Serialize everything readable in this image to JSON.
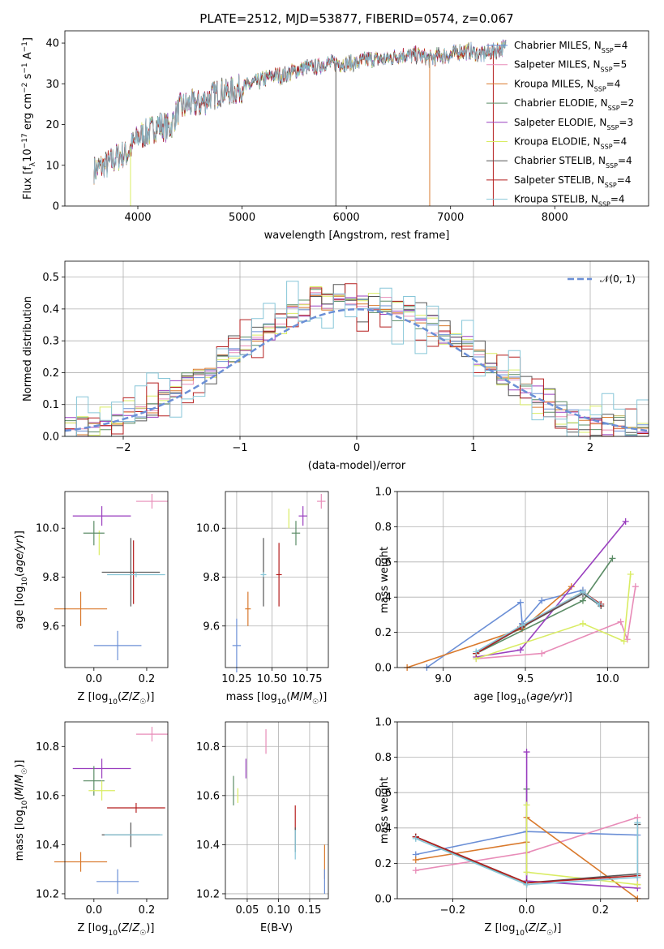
{
  "colors": {
    "Chabrier MILES": "#6b8fd6",
    "Salpeter MILES": "#e88cb8",
    "Kroupa MILES": "#d9792c",
    "Chabrier ELODIE": "#5b8c66",
    "Salpeter ELODIE": "#9a3fbf",
    "Kroupa ELODIE": "#d9ec63",
    "Chabrier STELIB": "#555555",
    "Salpeter STELIB": "#b51f1f",
    "Kroupa STELIB": "#87c6d8",
    "normal": "#6b8fd6"
  },
  "chart_data": [
    {
      "id": "spectrum",
      "type": "line",
      "title": "PLATE=2512, MJD=53877, FIBERID=0574, z=0.067",
      "xlabel": "wavelength [Angstrom, rest frame]",
      "ylabel": "Flux [f_λ10^-17 erg cm^-2 s^-1 A^-1]",
      "xlim": [
        3300,
        8900
      ],
      "ylim": [
        0,
        43
      ],
      "xticks": [
        4000,
        5000,
        6000,
        7000,
        8000
      ],
      "yticks": [
        0,
        10,
        20,
        30,
        40
      ],
      "grid": false,
      "legend_position": "top-right",
      "spectrum_x_range": [
        3580,
        7530
      ],
      "spectrum_anchor": {
        "x": [
          3580,
          3700,
          3800,
          3900,
          4000,
          4100,
          4200,
          4300,
          4400,
          4500,
          4600,
          4700,
          4800,
          4900,
          5000,
          5100,
          5200,
          5300,
          5400,
          5500,
          5600,
          5700,
          5800,
          5900,
          6000,
          6100,
          6200,
          6300,
          6400,
          6500,
          6600,
          6700,
          6800,
          6900,
          7000,
          7100,
          7200,
          7300,
          7400,
          7530
        ],
        "y": [
          9,
          10,
          12,
          13,
          17,
          18,
          20,
          19,
          24,
          25,
          25,
          27,
          28,
          28,
          29,
          30,
          31,
          32,
          32,
          33,
          34,
          34,
          35,
          35,
          35,
          35,
          36,
          36,
          36,
          37,
          37,
          37,
          36,
          37,
          37,
          38,
          38,
          37,
          38,
          39
        ]
      },
      "series": [
        {
          "name": "Chabrier MILES",
          "label": "Chabrier MILES, N",
          "sub": "SSP",
          "n": "=4"
        },
        {
          "name": "Salpeter MILES",
          "label": "Salpeter MILES, N",
          "sub": "SSP",
          "n": "=5"
        },
        {
          "name": "Kroupa MILES",
          "label": "Kroupa MILES, N",
          "sub": "SSP",
          "n": "=4"
        },
        {
          "name": "Chabrier ELODIE",
          "label": "Chabrier ELODIE, N",
          "sub": "SSP",
          "n": "=2"
        },
        {
          "name": "Salpeter ELODIE",
          "label": "Salpeter ELODIE, N",
          "sub": "SSP",
          "n": "=3"
        },
        {
          "name": "Kroupa ELODIE",
          "label": "Kroupa ELODIE, N",
          "sub": "SSP",
          "n": "=4"
        },
        {
          "name": "Chabrier STELIB",
          "label": "Chabrier STELIB, N",
          "sub": "SSP",
          "n": "=4"
        },
        {
          "name": "Salpeter STELIB",
          "label": "Salpeter STELIB, N",
          "sub": "SSP",
          "n": "=4"
        },
        {
          "name": "Kroupa STELIB",
          "label": "Kroupa STELIB, N",
          "sub": "SSP",
          "n": "=4"
        }
      ]
    },
    {
      "id": "residuals",
      "type": "line",
      "xlabel": "(data-model)/error",
      "ylabel": "Normed distribution",
      "xlim": [
        -2.5,
        2.5
      ],
      "ylim": [
        0,
        0.55
      ],
      "xticks": [
        -2,
        -1,
        0,
        1,
        2
      ],
      "xtick_labels": [
        "−2",
        "−1",
        "0",
        "1",
        "2"
      ],
      "yticks": [
        0.0,
        0.1,
        0.2,
        0.3,
        0.4,
        0.5
      ],
      "grid": true,
      "legend_position": "top-right",
      "legend": "𝒩(0, 1)",
      "bin_width": 0.1,
      "histogram_centers": [
        -2.45,
        -2.35,
        -2.25,
        -2.15,
        -2.05,
        -1.95,
        -1.85,
        -1.75,
        -1.65,
        -1.55,
        -1.45,
        -1.35,
        -1.25,
        -1.15,
        -1.05,
        -0.95,
        -0.85,
        -0.75,
        -0.65,
        -0.55,
        -0.45,
        -0.35,
        -0.25,
        -0.15,
        -0.05,
        0.05,
        0.15,
        0.25,
        0.35,
        0.45,
        0.55,
        0.65,
        0.75,
        0.85,
        0.95,
        1.05,
        1.15,
        1.25,
        1.35,
        1.45,
        1.55,
        1.65,
        1.75,
        1.85,
        1.95,
        2.05,
        2.15,
        2.25,
        2.35,
        2.45
      ],
      "histogram_base": [
        0.02,
        0.03,
        0.04,
        0.05,
        0.06,
        0.07,
        0.08,
        0.1,
        0.12,
        0.14,
        0.17,
        0.19,
        0.21,
        0.24,
        0.26,
        0.29,
        0.31,
        0.34,
        0.36,
        0.39,
        0.41,
        0.44,
        0.42,
        0.44,
        0.42,
        0.41,
        0.4,
        0.42,
        0.39,
        0.38,
        0.36,
        0.34,
        0.32,
        0.3,
        0.28,
        0.25,
        0.22,
        0.19,
        0.17,
        0.14,
        0.12,
        0.1,
        0.08,
        0.07,
        0.06,
        0.05,
        0.04,
        0.03,
        0.03,
        0.02
      ],
      "histogram_spread": [
        0.02,
        0.02,
        0.03,
        0.03,
        0.04,
        0.05,
        0.06,
        0.08,
        0.1,
        0.09
      ]
    },
    {
      "id": "age_vs_Z",
      "type": "scatter",
      "xlabel": "Z [log10(Z/Z☉)]",
      "ylabel": "age  [log10(age/yr)]",
      "xlim": [
        -0.11,
        0.28
      ],
      "ylim": [
        9.43,
        10.15
      ],
      "xticks": [
        0.0,
        0.2
      ],
      "yticks": [
        9.6,
        9.8,
        10.0
      ],
      "grid": false,
      "points": [
        {
          "series": "Salpeter MILES",
          "x": 0.22,
          "y": 10.11,
          "xerr": 0.06,
          "yerr": 0.03
        },
        {
          "series": "Salpeter ELODIE",
          "x": 0.03,
          "y": 10.05,
          "xerr": 0.11,
          "yerr": 0.04
        },
        {
          "series": "Kroupa ELODIE",
          "x": 0.02,
          "y": 9.94,
          "xerr": 0.0,
          "yerr": 0.05
        },
        {
          "series": "Chabrier ELODIE",
          "x": 0.0,
          "y": 9.98,
          "xerr": 0.04,
          "yerr": 0.05
        },
        {
          "series": "Chabrier STELIB",
          "x": 0.14,
          "y": 9.82,
          "xerr": 0.11,
          "yerr": 0.14
        },
        {
          "series": "Salpeter STELIB",
          "x": 0.15,
          "y": 9.82,
          "xerr": 0.0,
          "yerr": 0.13
        },
        {
          "series": "Kroupa STELIB",
          "x": 0.16,
          "y": 9.81,
          "xerr": 0.11,
          "yerr": 0.01
        },
        {
          "series": "Kroupa MILES",
          "x": -0.05,
          "y": 9.67,
          "xerr": 0.1,
          "yerr": 0.07
        },
        {
          "series": "Chabrier MILES",
          "x": 0.09,
          "y": 9.52,
          "xerr": 0.09,
          "yerr": 0.06
        }
      ]
    },
    {
      "id": "age_vs_mass",
      "type": "scatter",
      "xlabel": "mass [log10(M/M☉)]",
      "ylabel": "",
      "xlim": [
        10.17,
        10.9
      ],
      "ylim": [
        9.43,
        10.15
      ],
      "xticks": [
        10.25,
        10.5,
        10.75
      ],
      "yticks": [
        9.6,
        9.8,
        10.0
      ],
      "grid": true,
      "points": [
        {
          "series": "Salpeter MILES",
          "x": 10.85,
          "y": 10.11,
          "xerr": 0.03,
          "yerr": 0.03
        },
        {
          "series": "Salpeter ELODIE",
          "x": 10.72,
          "y": 10.05,
          "xerr": 0.03,
          "yerr": 0.04
        },
        {
          "series": "Kroupa ELODIE",
          "x": 10.62,
          "y": 10.04,
          "xerr": 0.0,
          "yerr": 0.04
        },
        {
          "series": "Chabrier ELODIE",
          "x": 10.67,
          "y": 9.98,
          "xerr": 0.03,
          "yerr": 0.05
        },
        {
          "series": "Chabrier STELIB",
          "x": 10.44,
          "y": 9.82,
          "xerr": 0.0,
          "yerr": 0.14
        },
        {
          "series": "Kroupa STELIB",
          "x": 10.44,
          "y": 9.81,
          "xerr": 0.02,
          "yerr": 0.01
        },
        {
          "series": "Salpeter STELIB",
          "x": 10.55,
          "y": 9.81,
          "xerr": 0.02,
          "yerr": 0.13
        },
        {
          "series": "Kroupa MILES",
          "x": 10.33,
          "y": 9.67,
          "xerr": 0.02,
          "yerr": 0.07
        },
        {
          "series": "Chabrier MILES",
          "x": 10.25,
          "y": 9.52,
          "xerr": 0.03,
          "yerr": 0.11
        }
      ]
    },
    {
      "id": "weight_vs_age",
      "type": "line",
      "xlabel": "age  [log10(age/yr)]",
      "ylabel": "mass weight",
      "xlim": [
        8.72,
        10.25
      ],
      "ylim": [
        0,
        1.0
      ],
      "xticks": [
        9.0,
        9.5,
        10.0
      ],
      "yticks": [
        0.0,
        0.2,
        0.4,
        0.6,
        0.8,
        1.0
      ],
      "grid": true,
      "series": [
        {
          "name": "Chabrier MILES",
          "x": [
            8.9,
            9.47,
            9.48,
            9.6,
            9.85
          ],
          "y": [
            0.0,
            0.37,
            0.25,
            0.38,
            0.44
          ]
        },
        {
          "name": "Salpeter MILES",
          "x": [
            9.2,
            9.6,
            10.08,
            10.12,
            10.17
          ],
          "y": [
            0.05,
            0.08,
            0.26,
            0.16,
            0.46
          ]
        },
        {
          "name": "Kroupa MILES",
          "x": [
            8.78,
            9.48,
            9.78
          ],
          "y": [
            0.0,
            0.22,
            0.46
          ]
        },
        {
          "name": "Chabrier ELODIE",
          "x": [
            9.2,
            9.85,
            10.03
          ],
          "y": [
            0.08,
            0.38,
            0.62
          ]
        },
        {
          "name": "Salpeter ELODIE",
          "x": [
            9.2,
            9.47,
            10.11
          ],
          "y": [
            0.06,
            0.1,
            0.83
          ]
        },
        {
          "name": "Kroupa ELODIE",
          "x": [
            9.2,
            9.85,
            10.1,
            10.14
          ],
          "y": [
            0.05,
            0.25,
            0.15,
            0.53
          ]
        },
        {
          "name": "Chabrier STELIB",
          "x": [
            9.2,
            9.48,
            9.85,
            9.96
          ],
          "y": [
            0.08,
            0.23,
            0.42,
            0.35
          ]
        },
        {
          "name": "Salpeter STELIB",
          "x": [
            9.2,
            9.47,
            9.85,
            9.96
          ],
          "y": [
            0.08,
            0.23,
            0.43,
            0.36
          ]
        },
        {
          "name": "Kroupa STELIB",
          "x": [
            9.2,
            9.48,
            9.85,
            9.95
          ],
          "y": [
            0.09,
            0.24,
            0.43,
            0.36
          ]
        }
      ]
    },
    {
      "id": "mass_vs_Z",
      "type": "scatter",
      "xlabel": "Z [log10(Z/Z☉)]",
      "ylabel": "mass [log10(M/M☉)]",
      "xlim": [
        -0.11,
        0.28
      ],
      "ylim": [
        10.18,
        10.9
      ],
      "xticks": [
        0.0,
        0.2
      ],
      "yticks": [
        10.2,
        10.4,
        10.6,
        10.8
      ],
      "grid": false,
      "points": [
        {
          "series": "Salpeter MILES",
          "x": 0.22,
          "y": 10.85,
          "xerr": 0.06,
          "yerr": 0.03
        },
        {
          "series": "Salpeter ELODIE",
          "x": 0.03,
          "y": 10.71,
          "xerr": 0.11,
          "yerr": 0.04
        },
        {
          "series": "Chabrier ELODIE",
          "x": 0.0,
          "y": 10.66,
          "xerr": 0.04,
          "yerr": 0.06
        },
        {
          "series": "Kroupa ELODIE",
          "x": 0.03,
          "y": 10.62,
          "xerr": 0.05,
          "yerr": 0.04
        },
        {
          "series": "Salpeter STELIB",
          "x": 0.16,
          "y": 10.55,
          "xerr": 0.11,
          "yerr": 0.02
        },
        {
          "series": "Chabrier STELIB",
          "x": 0.14,
          "y": 10.44,
          "xerr": 0.11,
          "yerr": 0.05
        },
        {
          "series": "Kroupa STELIB",
          "x": 0.15,
          "y": 10.44,
          "xerr": 0.11,
          "yerr": 0.0
        },
        {
          "series": "Kroupa MILES",
          "x": -0.05,
          "y": 10.33,
          "xerr": 0.1,
          "yerr": 0.04
        },
        {
          "series": "Chabrier MILES",
          "x": 0.09,
          "y": 10.25,
          "xerr": 0.08,
          "yerr": 0.05
        }
      ]
    },
    {
      "id": "mass_vs_EBV",
      "type": "scatter",
      "xlabel": "E(B-V)",
      "ylabel": "",
      "xlim": [
        0.015,
        0.18
      ],
      "ylim": [
        10.18,
        10.9
      ],
      "xticks": [
        0.05,
        0.1,
        0.15
      ],
      "yticks": [
        10.2,
        10.4,
        10.6,
        10.8
      ],
      "grid": true,
      "points": [
        {
          "series": "Salpeter MILES",
          "x": 0.08,
          "y": 10.82,
          "xerr": 0.0,
          "yerr": 0.05
        },
        {
          "series": "Salpeter ELODIE",
          "x": 0.048,
          "y": 10.71,
          "xerr": 0.0,
          "yerr": 0.04
        },
        {
          "series": "Chabrier ELODIE",
          "x": 0.028,
          "y": 10.62,
          "xerr": 0.0,
          "yerr": 0.06
        },
        {
          "series": "Kroupa ELODIE",
          "x": 0.035,
          "y": 10.6,
          "xerr": 0.0,
          "yerr": 0.03
        },
        {
          "series": "Salpeter STELIB",
          "x": 0.127,
          "y": 10.51,
          "xerr": 0.0,
          "yerr": 0.05
        },
        {
          "series": "Chabrier STELIB",
          "x": 0.127,
          "y": 10.42,
          "xerr": 0.0,
          "yerr": 0.05
        },
        {
          "series": "Kroupa STELIB",
          "x": 0.127,
          "y": 10.4,
          "xerr": 0.0,
          "yerr": 0.06
        },
        {
          "series": "Kroupa MILES",
          "x": 0.174,
          "y": 10.33,
          "xerr": 0.0,
          "yerr": 0.07
        },
        {
          "series": "Chabrier MILES",
          "x": 0.174,
          "y": 10.25,
          "xerr": 0.0,
          "yerr": 0.05
        }
      ]
    },
    {
      "id": "weight_vs_Z",
      "type": "line",
      "xlabel": "Z [log10(Z/Z☉)]",
      "ylabel": "mass weight",
      "xlim": [
        -0.35,
        0.33
      ],
      "ylim": [
        0,
        1.0
      ],
      "xticks": [
        -0.2,
        0.0,
        0.2
      ],
      "xtick_labels": [
        "−0.2",
        "0.0",
        "0.2"
      ],
      "yticks": [
        0.0,
        0.2,
        0.4,
        0.6,
        0.8,
        1.0
      ],
      "grid": true,
      "series": [
        {
          "name": "Chabrier MILES",
          "x": [
            -0.3,
            0.0,
            0.3
          ],
          "y": [
            0.25,
            0.38,
            0.36
          ]
        },
        {
          "name": "Salpeter MILES",
          "x": [
            -0.3,
            0.0,
            0.3,
            0.3
          ],
          "y": [
            0.16,
            0.26,
            0.46,
            0.08
          ]
        },
        {
          "name": "Kroupa MILES",
          "x": [
            -0.3,
            0.0,
            0.0,
            0.3
          ],
          "y": [
            0.22,
            0.32,
            0.46,
            0.0
          ]
        },
        {
          "name": "Chabrier ELODIE",
          "x": [
            -0.3,
            0.0,
            0.0
          ],
          "y": [
            0.35,
            0.08,
            0.62
          ]
        },
        {
          "name": "Salpeter ELODIE",
          "x": [
            0.0,
            0.0,
            0.3
          ],
          "y": [
            0.83,
            0.1,
            0.06
          ]
        },
        {
          "name": "Kroupa ELODIE",
          "x": [
            0.0,
            0.0,
            0.3
          ],
          "y": [
            0.53,
            0.15,
            0.08
          ]
        },
        {
          "name": "Chabrier STELIB",
          "x": [
            -0.3,
            0.0,
            0.3,
            0.3
          ],
          "y": [
            0.35,
            0.09,
            0.14,
            0.42
          ]
        },
        {
          "name": "Salpeter STELIB",
          "x": [
            -0.3,
            0.0,
            0.3
          ],
          "y": [
            0.35,
            0.09,
            0.13
          ]
        },
        {
          "name": "Kroupa STELIB",
          "x": [
            -0.3,
            0.0,
            0.3,
            0.3
          ],
          "y": [
            0.34,
            0.08,
            0.12,
            0.43
          ]
        }
      ]
    }
  ]
}
